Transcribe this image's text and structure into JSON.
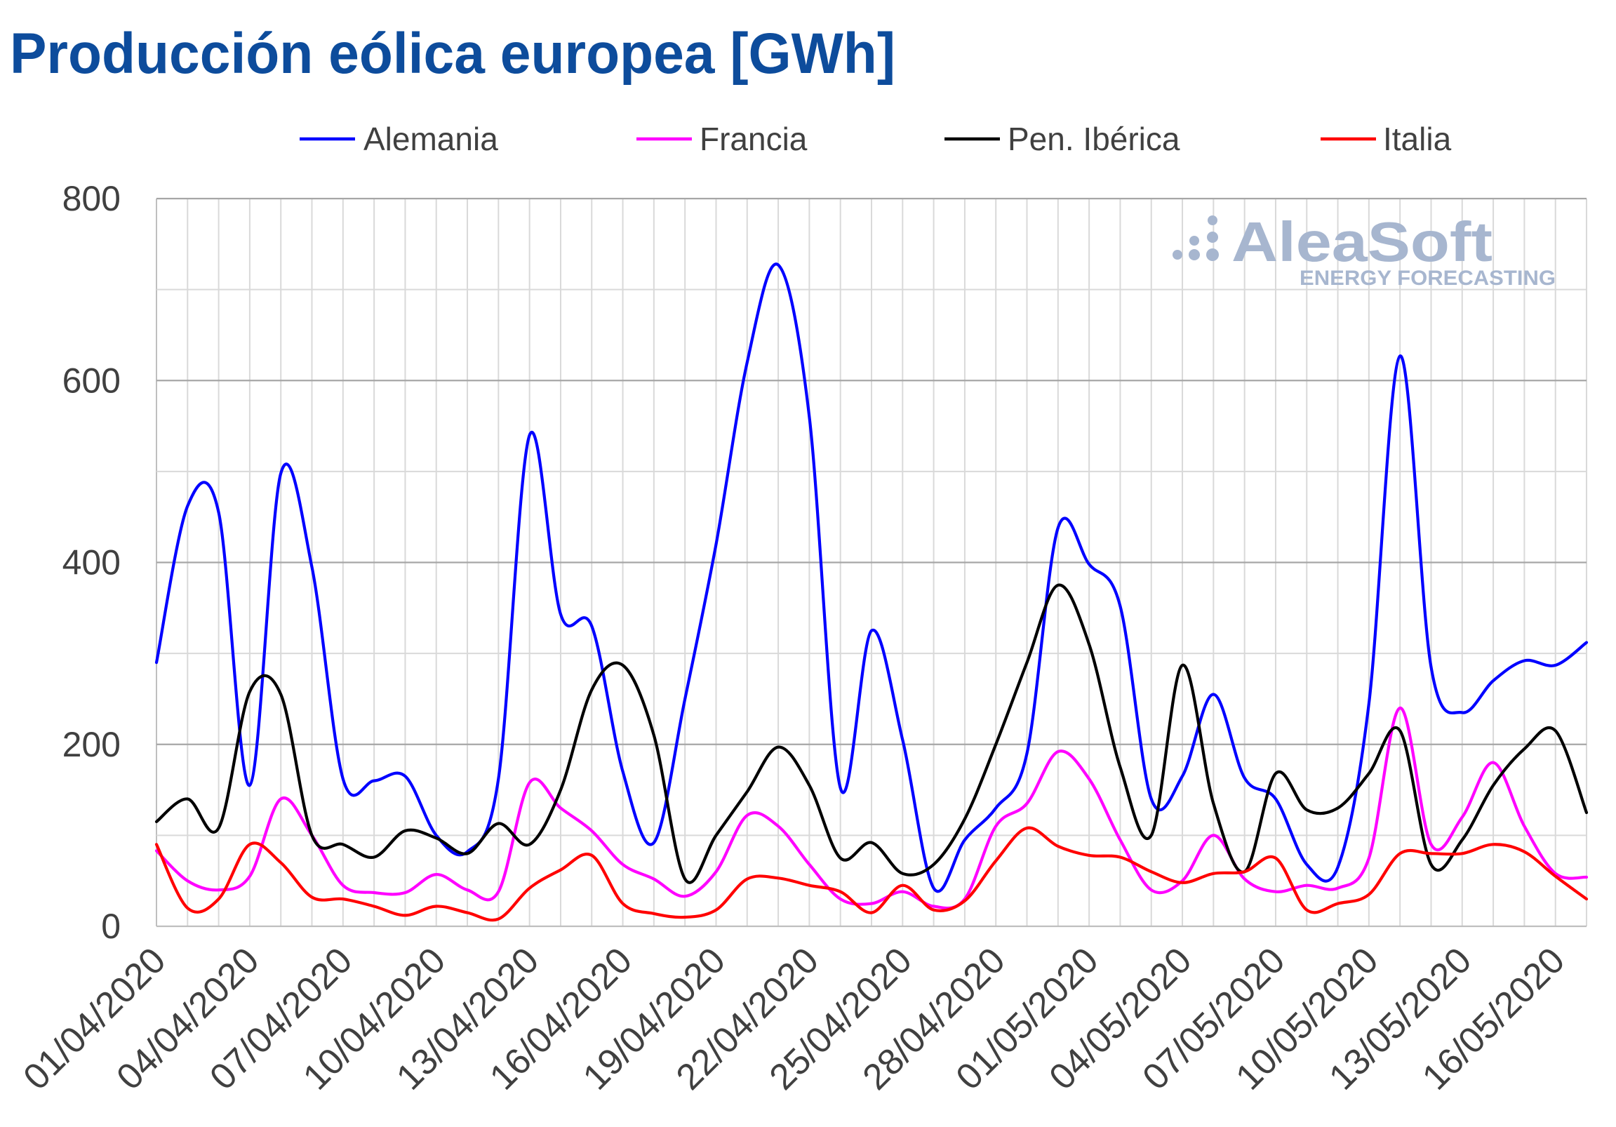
{
  "colors": {
    "title": "#0d4c9c",
    "logo": "#a7b6cf"
  },
  "logo": {
    "name": "AleaSoft",
    "tagline": "ENERGY FORECASTING"
  },
  "chart_data": {
    "type": "line",
    "title": "Producción eólica europea [GWh]",
    "x": [
      "01/04/2020",
      "02/04/2020",
      "03/04/2020",
      "04/04/2020",
      "05/04/2020",
      "06/04/2020",
      "07/04/2020",
      "08/04/2020",
      "09/04/2020",
      "10/04/2020",
      "11/04/2020",
      "12/04/2020",
      "13/04/2020",
      "14/04/2020",
      "15/04/2020",
      "16/04/2020",
      "17/04/2020",
      "18/04/2020",
      "19/04/2020",
      "20/04/2020",
      "21/04/2020",
      "22/04/2020",
      "23/04/2020",
      "24/04/2020",
      "25/04/2020",
      "26/04/2020",
      "27/04/2020",
      "28/04/2020",
      "29/04/2020",
      "30/04/2020",
      "01/05/2020",
      "02/05/2020",
      "03/05/2020",
      "04/05/2020",
      "05/05/2020",
      "06/05/2020",
      "07/05/2020",
      "08/05/2020",
      "09/05/2020",
      "10/05/2020",
      "11/05/2020",
      "12/05/2020",
      "13/05/2020",
      "14/05/2020",
      "15/05/2020",
      "16/05/2020",
      "17/05/2020"
    ],
    "x_ticks": [
      "01/04/2020",
      "04/04/2020",
      "07/04/2020",
      "10/04/2020",
      "13/04/2020",
      "16/04/2020",
      "19/04/2020",
      "22/04/2020",
      "25/04/2020",
      "28/04/2020",
      "01/05/2020",
      "04/05/2020",
      "07/05/2020",
      "10/05/2020",
      "13/05/2020",
      "16/05/2020"
    ],
    "ylim": [
      0,
      800
    ],
    "y_ticks": [
      0,
      200,
      400,
      600,
      800
    ],
    "grid": true,
    "legend_position": "top",
    "series": [
      {
        "name": "Alemania",
        "color": "#0000ff",
        "values": [
          290,
          462,
          455,
          155,
          498,
          395,
          162,
          160,
          165,
          100,
          82,
          162,
          540,
          343,
          330,
          170,
          92,
          250,
          420,
          620,
          727,
          560,
          152,
          325,
          205,
          42,
          95,
          130,
          190,
          438,
          398,
          352,
          140,
          165,
          255,
          163,
          140,
          68,
          65,
          245,
          627,
          285,
          235,
          270,
          292,
          287,
          312
        ]
      },
      {
        "name": "Francia",
        "color": "#ff00ff",
        "values": [
          83,
          50,
          40,
          55,
          140,
          100,
          45,
          37,
          37,
          57,
          40,
          38,
          158,
          130,
          105,
          68,
          52,
          33,
          60,
          122,
          110,
          68,
          30,
          25,
          38,
          22,
          30,
          110,
          135,
          192,
          162,
          95,
          40,
          50,
          100,
          52,
          38,
          45,
          42,
          75,
          240,
          90,
          120,
          180,
          110,
          58,
          54
        ]
      },
      {
        "name": "Pen. Ibérica",
        "color": "#000000",
        "values": [
          115,
          140,
          108,
          258,
          255,
          100,
          90,
          76,
          105,
          97,
          80,
          113,
          90,
          150,
          260,
          287,
          210,
          52,
          100,
          148,
          197,
          155,
          75,
          92,
          58,
          68,
          118,
          200,
          290,
          375,
          310,
          175,
          100,
          287,
          135,
          60,
          168,
          128,
          130,
          168,
          215,
          68,
          95,
          155,
          195,
          215,
          125
        ]
      },
      {
        "name": "Italia",
        "color": "#ff0000",
        "values": [
          90,
          20,
          30,
          90,
          70,
          32,
          30,
          22,
          12,
          22,
          15,
          8,
          42,
          62,
          78,
          25,
          14,
          10,
          18,
          52,
          53,
          45,
          38,
          15,
          45,
          18,
          28,
          72,
          108,
          88,
          78,
          76,
          60,
          48,
          58,
          60,
          75,
          18,
          25,
          35,
          80,
          80,
          80,
          90,
          82,
          55,
          30
        ]
      }
    ]
  }
}
